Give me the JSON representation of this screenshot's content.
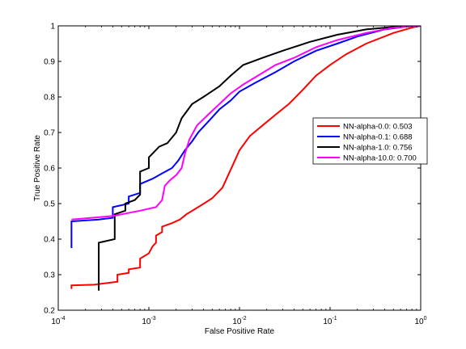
{
  "chart_data": {
    "type": "line",
    "title": "",
    "xlabel": "False Positive Rate",
    "ylabel": "True Positive Rate",
    "xscale": "log",
    "xlim": [
      0.0001,
      1
    ],
    "ylim": [
      0.2,
      1
    ],
    "grid": false,
    "legend_position": "center-right",
    "x_ticks": [
      {
        "value": 0.0001,
        "base": "10",
        "exp": "-4"
      },
      {
        "value": 0.001,
        "base": "10",
        "exp": "-3"
      },
      {
        "value": 0.01,
        "base": "10",
        "exp": "-2"
      },
      {
        "value": 0.1,
        "base": "10",
        "exp": "-1"
      },
      {
        "value": 1,
        "base": "10",
        "exp": "0"
      }
    ],
    "y_ticks": [
      0.2,
      0.3,
      0.4,
      0.5,
      0.6,
      0.7,
      0.8,
      0.9,
      1
    ],
    "y_tick_labels": [
      "0.2",
      "0.3",
      "0.4",
      "0.5",
      "0.6",
      "0.7",
      "0.8",
      "0.9",
      "1"
    ],
    "series": [
      {
        "name": "NN-alpha-0.0: 0.503",
        "color": "#ff0000",
        "points": [
          [
            0.00014,
            0.26
          ],
          [
            0.00014,
            0.27
          ],
          [
            0.00025,
            0.272
          ],
          [
            0.00045,
            0.28
          ],
          [
            0.00045,
            0.3
          ],
          [
            0.0006,
            0.305
          ],
          [
            0.0006,
            0.315
          ],
          [
            0.0008,
            0.32
          ],
          [
            0.0008,
            0.345
          ],
          [
            0.001,
            0.36
          ],
          [
            0.0011,
            0.38
          ],
          [
            0.0012,
            0.39
          ],
          [
            0.0012,
            0.41
          ],
          [
            0.0014,
            0.42
          ],
          [
            0.0014,
            0.435
          ],
          [
            0.0018,
            0.445
          ],
          [
            0.0022,
            0.455
          ],
          [
            0.0026,
            0.47
          ],
          [
            0.0035,
            0.49
          ],
          [
            0.005,
            0.515
          ],
          [
            0.0065,
            0.545
          ],
          [
            0.0075,
            0.58
          ],
          [
            0.0085,
            0.61
          ],
          [
            0.01,
            0.65
          ],
          [
            0.013,
            0.69
          ],
          [
            0.018,
            0.72
          ],
          [
            0.025,
            0.75
          ],
          [
            0.035,
            0.78
          ],
          [
            0.05,
            0.82
          ],
          [
            0.07,
            0.86
          ],
          [
            0.1,
            0.89
          ],
          [
            0.15,
            0.92
          ],
          [
            0.25,
            0.95
          ],
          [
            0.5,
            0.98
          ],
          [
            0.8,
            0.995
          ],
          [
            1,
            1
          ]
        ]
      },
      {
        "name": "NN-alpha-0.1: 0.688",
        "color": "#0000ff",
        "points": [
          [
            0.00014,
            0.375
          ],
          [
            0.00014,
            0.45
          ],
          [
            0.00028,
            0.455
          ],
          [
            0.0004,
            0.46
          ],
          [
            0.0004,
            0.49
          ],
          [
            0.0006,
            0.5
          ],
          [
            0.0006,
            0.52
          ],
          [
            0.0008,
            0.53
          ],
          [
            0.0008,
            0.555
          ],
          [
            0.0011,
            0.57
          ],
          [
            0.0014,
            0.585
          ],
          [
            0.0018,
            0.6
          ],
          [
            0.0021,
            0.62
          ],
          [
            0.0025,
            0.65
          ],
          [
            0.003,
            0.675
          ],
          [
            0.0035,
            0.7
          ],
          [
            0.0045,
            0.73
          ],
          [
            0.006,
            0.765
          ],
          [
            0.008,
            0.79
          ],
          [
            0.01,
            0.815
          ],
          [
            0.015,
            0.84
          ],
          [
            0.025,
            0.87
          ],
          [
            0.04,
            0.9
          ],
          [
            0.07,
            0.93
          ],
          [
            0.12,
            0.95
          ],
          [
            0.2,
            0.97
          ],
          [
            0.4,
            0.99
          ],
          [
            0.7,
            0.998
          ],
          [
            1,
            1
          ]
        ]
      },
      {
        "name": "NN-alpha-1.0: 0.756",
        "color": "#000000",
        "points": [
          [
            0.00028,
            0.255
          ],
          [
            0.00028,
            0.39
          ],
          [
            0.00042,
            0.4
          ],
          [
            0.00042,
            0.47
          ],
          [
            0.00055,
            0.48
          ],
          [
            0.00055,
            0.5
          ],
          [
            0.0007,
            0.51
          ],
          [
            0.0008,
            0.525
          ],
          [
            0.0008,
            0.59
          ],
          [
            0.001,
            0.6
          ],
          [
            0.001,
            0.63
          ],
          [
            0.0013,
            0.66
          ],
          [
            0.0016,
            0.67
          ],
          [
            0.002,
            0.7
          ],
          [
            0.0023,
            0.74
          ],
          [
            0.003,
            0.78
          ],
          [
            0.004,
            0.8
          ],
          [
            0.006,
            0.83
          ],
          [
            0.008,
            0.86
          ],
          [
            0.011,
            0.89
          ],
          [
            0.018,
            0.91
          ],
          [
            0.03,
            0.93
          ],
          [
            0.06,
            0.955
          ],
          [
            0.12,
            0.975
          ],
          [
            0.25,
            0.99
          ],
          [
            0.5,
            0.997
          ],
          [
            1,
            1
          ]
        ]
      },
      {
        "name": "NN-alpha-10.0: 0.700",
        "color": "#ff00ff",
        "points": [
          [
            0.00014,
            0.455
          ],
          [
            0.0004,
            0.465
          ],
          [
            0.0008,
            0.48
          ],
          [
            0.0012,
            0.49
          ],
          [
            0.0014,
            0.51
          ],
          [
            0.0015,
            0.55
          ],
          [
            0.0017,
            0.565
          ],
          [
            0.002,
            0.58
          ],
          [
            0.0023,
            0.6
          ],
          [
            0.0025,
            0.64
          ],
          [
            0.0028,
            0.68
          ],
          [
            0.0034,
            0.72
          ],
          [
            0.0045,
            0.75
          ],
          [
            0.006,
            0.78
          ],
          [
            0.008,
            0.81
          ],
          [
            0.011,
            0.835
          ],
          [
            0.016,
            0.86
          ],
          [
            0.025,
            0.89
          ],
          [
            0.04,
            0.91
          ],
          [
            0.07,
            0.94
          ],
          [
            0.12,
            0.96
          ],
          [
            0.25,
            0.98
          ],
          [
            0.5,
            0.995
          ],
          [
            1,
            1
          ]
        ]
      }
    ]
  }
}
